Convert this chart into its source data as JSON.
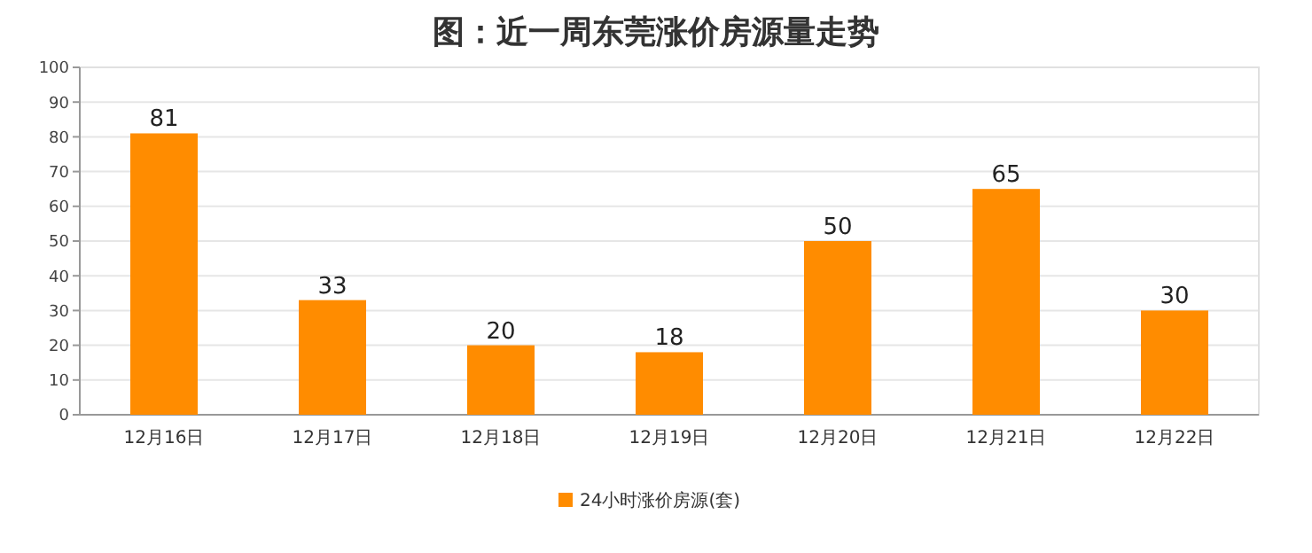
{
  "chart_data": {
    "type": "bar",
    "title": "图：近一周东莞涨价房源量走势",
    "categories": [
      "12月16日",
      "12月17日",
      "12月18日",
      "12月19日",
      "12月20日",
      "12月21日",
      "12月22日"
    ],
    "series": [
      {
        "name": "24小时涨价房源(套)",
        "color": "#ff8c00",
        "values": [
          81,
          33,
          20,
          18,
          50,
          65,
          30
        ]
      }
    ],
    "ylim": [
      0,
      100
    ],
    "yticks": [
      0,
      10,
      20,
      30,
      40,
      50,
      60,
      70,
      80,
      90,
      100
    ],
    "grid": "y",
    "data_labels": true,
    "legend": "bottom"
  }
}
